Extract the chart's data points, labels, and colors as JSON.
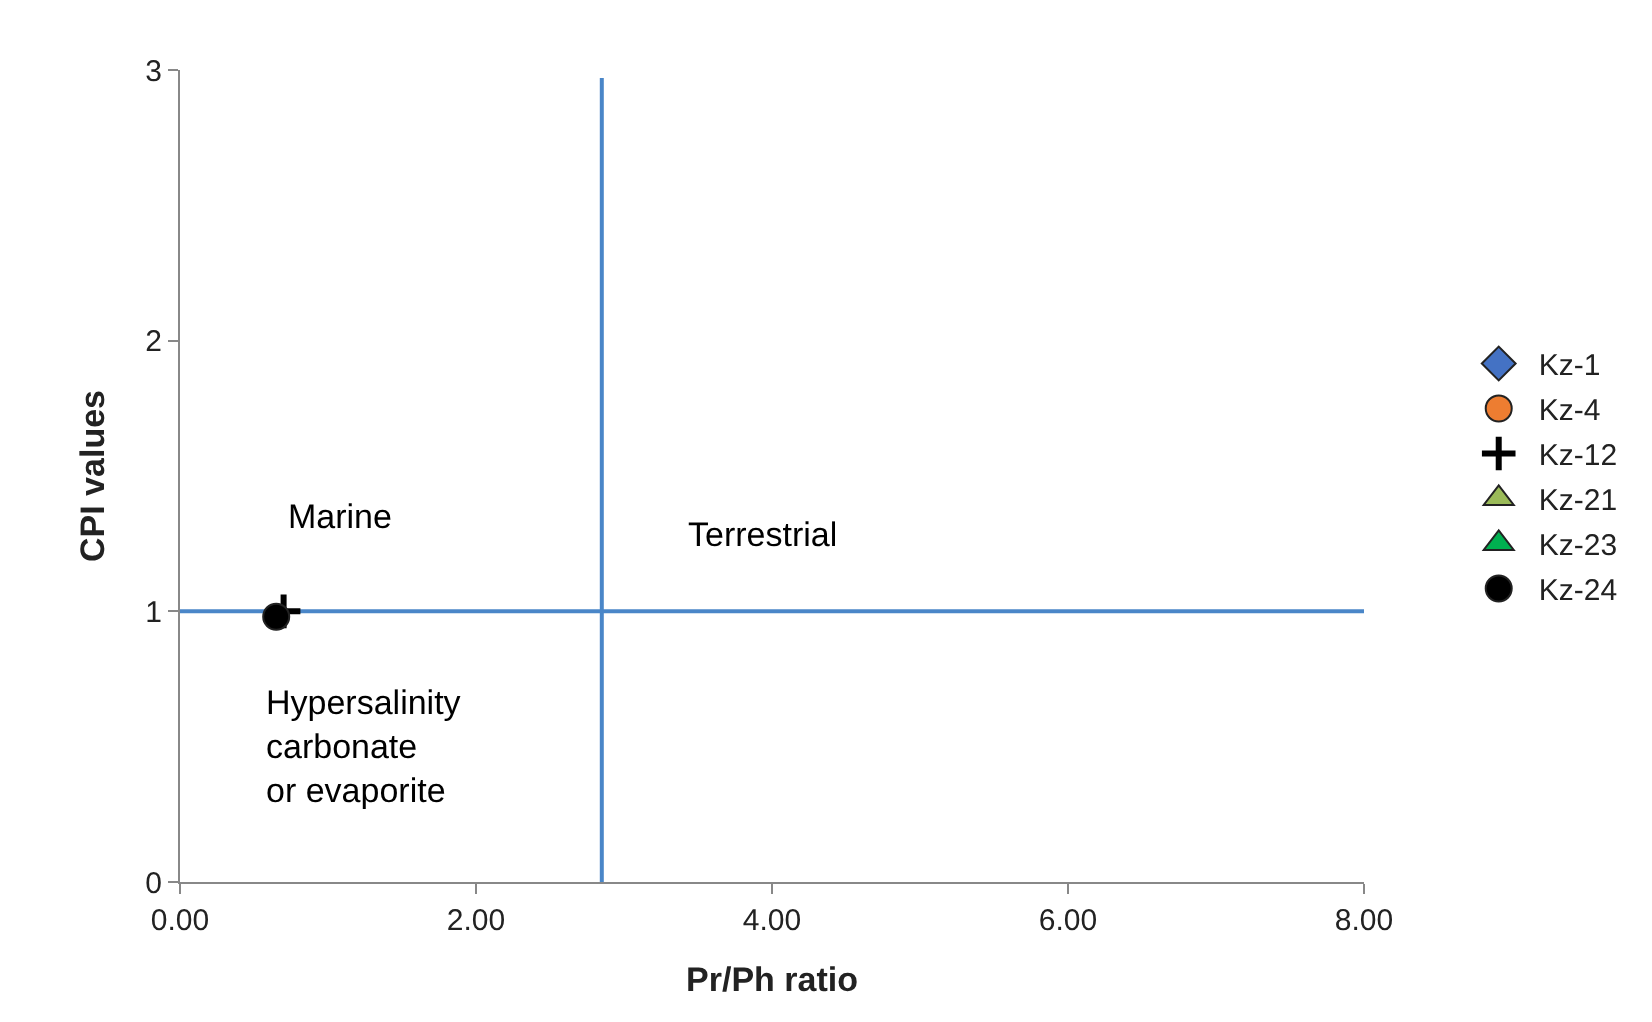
{
  "chart_data": {
    "type": "scatter",
    "xlabel": "Pr/Ph ratio",
    "ylabel": "CPI values",
    "xlim": [
      0,
      8
    ],
    "xticks": [
      {
        "value": 0,
        "label": "0.00"
      },
      {
        "value": 2,
        "label": "2.00"
      },
      {
        "value": 4,
        "label": "4.00"
      },
      {
        "value": 6,
        "label": "6.00"
      },
      {
        "value": 8,
        "label": "8.00"
      }
    ],
    "ylim": [
      0,
      3
    ],
    "yticks": [
      0,
      1,
      2,
      3
    ],
    "grid": false,
    "legend": "right",
    "series": [
      {
        "name": "Kz-1",
        "color": "#4472c4",
        "marker": "diamond",
        "x": [
          null
        ],
        "values": [
          null
        ]
      },
      {
        "name": "Kz-4",
        "color": "#ed7d31",
        "marker": "circle",
        "x": [
          null
        ],
        "values": [
          null
        ]
      },
      {
        "name": "Kz-12",
        "color": "#000000",
        "marker": "cross",
        "x": [
          0.7
        ],
        "values": [
          1.0
        ]
      },
      {
        "name": "Kz-21",
        "color": "#9bbb59",
        "marker": "triangle",
        "x": [
          null
        ],
        "values": [
          null
        ]
      },
      {
        "name": "Kz-23",
        "color": "#00b050",
        "marker": "triangle",
        "x": [
          null
        ],
        "values": [
          null
        ]
      },
      {
        "name": "Kz-24",
        "color": "#000000",
        "marker": "circle",
        "x": [
          0.65
        ],
        "values": [
          0.98
        ]
      }
    ],
    "ref_lines": [
      {
        "axis": "x",
        "value": 2.85,
        "color": "#4a86c8"
      },
      {
        "axis": "y",
        "value": 1,
        "color": "#4a86c8"
      }
    ],
    "annotations": [
      "Marine",
      "Terrestrial",
      "Hypersalinity\ncarbonate\nor evaporite"
    ]
  }
}
